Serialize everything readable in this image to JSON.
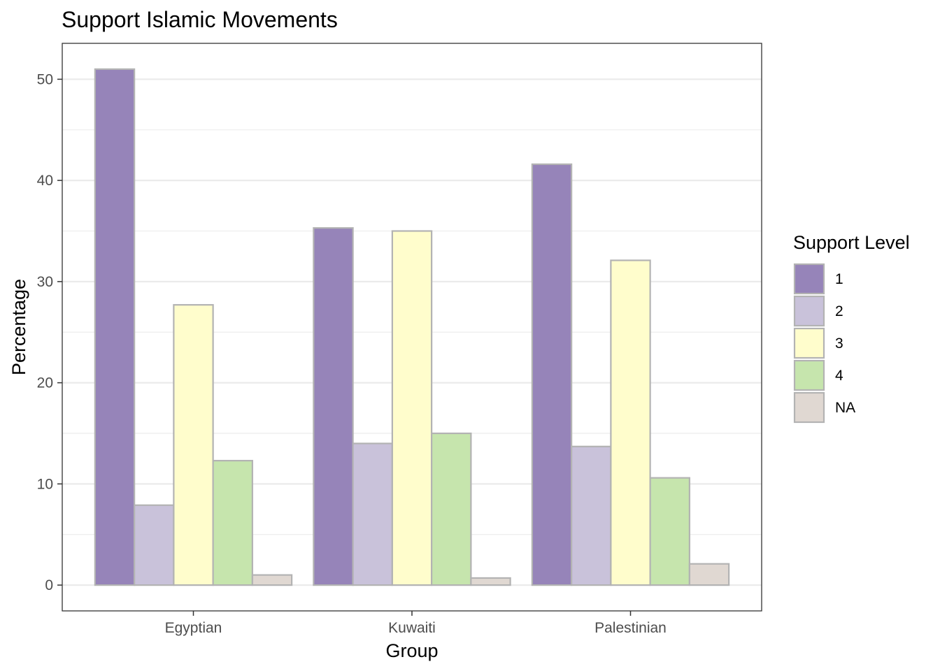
{
  "chart_data": {
    "type": "bar",
    "title": "Support Islamic Movements",
    "xlabel": "Group",
    "ylabel": "Percentage",
    "categories": [
      "Egyptian",
      "Kuwaiti",
      "Palestinian"
    ],
    "series": [
      {
        "name": "1",
        "values": [
          51.0,
          35.3,
          41.6
        ]
      },
      {
        "name": "2",
        "values": [
          7.9,
          14.0,
          13.7
        ]
      },
      {
        "name": "3",
        "values": [
          27.7,
          35.0,
          32.1
        ]
      },
      {
        "name": "4",
        "values": [
          12.3,
          15.0,
          10.6
        ]
      },
      {
        "name": "NA",
        "values": [
          1.0,
          0.7,
          2.1
        ]
      }
    ],
    "ylim": [
      -2.55,
      53.55
    ],
    "yticks": [
      0,
      10,
      20,
      30,
      40,
      50
    ],
    "ytick_labels": [
      "0",
      "10",
      "20",
      "30",
      "40",
      "50"
    ],
    "grid": true,
    "legend": {
      "title": "Support Level",
      "position": "right"
    },
    "colors": {
      "1": "#9684b9",
      "2": "#c9c2da",
      "3": "#fffdcc",
      "4": "#c6e5ad",
      "NA": "#e0d8d2",
      "bar_outline": "#b3b3b3",
      "grid": "#ebebeb",
      "panel_border": "#333333"
    }
  }
}
